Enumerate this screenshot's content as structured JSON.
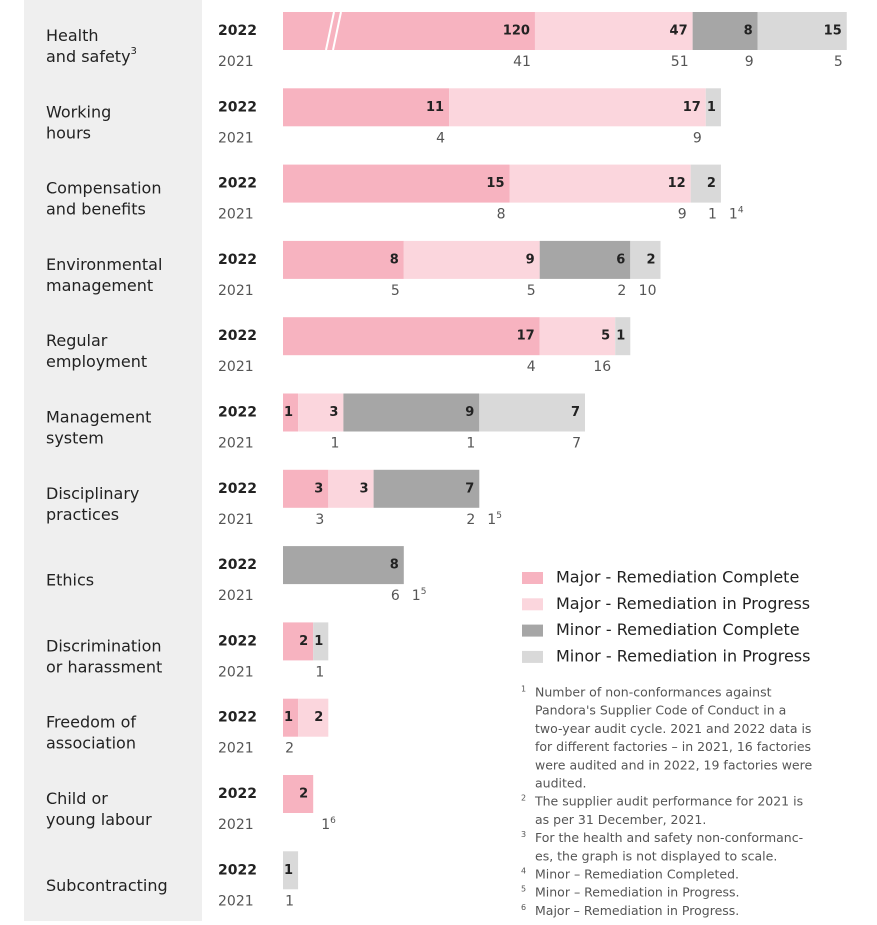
{
  "chart_data": {
    "type": "bar",
    "year_labels": [
      "2022",
      "2021"
    ],
    "series": [
      {
        "name": "Major - Remediation Complete",
        "color": "#f7b3c0"
      },
      {
        "name": "Major - Remediation in Progress",
        "color": "#fbd6dd"
      },
      {
        "name": "Minor - Remediation Complete",
        "color": "#a6a6a6"
      },
      {
        "name": "Minor - Remediation in Progress",
        "color": "#d9d9d9"
      }
    ],
    "rows": [
      {
        "label": [
          "Health",
          "and safety"
        ],
        "note": "3",
        "broken": true,
        "values": [
          120,
          47,
          8,
          15
        ],
        "values_2021": [
          41,
          51,
          9,
          5
        ],
        "notes_2021": [
          null,
          null,
          null,
          null
        ]
      },
      {
        "label": [
          "Working",
          "hours"
        ],
        "values": [
          11,
          17,
          null,
          1
        ],
        "values_2021": [
          4,
          9,
          null,
          null
        ],
        "notes_2021": [
          null,
          null,
          null,
          null
        ]
      },
      {
        "label": [
          "Compensation",
          "and benefits"
        ],
        "values": [
          15,
          12,
          null,
          2
        ],
        "values_2021": [
          8,
          9,
          1,
          1
        ],
        "notes_2021": [
          null,
          null,
          "4",
          null
        ]
      },
      {
        "label": [
          "Environmental",
          "management"
        ],
        "values": [
          8,
          9,
          6,
          2
        ],
        "values_2021": [
          5,
          5,
          2,
          10
        ],
        "notes_2021": [
          null,
          null,
          null,
          null
        ]
      },
      {
        "label": [
          "Regular",
          "employment"
        ],
        "values": [
          17,
          5,
          null,
          1
        ],
        "values_2021": [
          4,
          16,
          null,
          null
        ],
        "notes_2021": [
          null,
          null,
          null,
          null
        ]
      },
      {
        "label": [
          "Management",
          "system"
        ],
        "values": [
          1,
          3,
          9,
          7
        ],
        "values_2021": [
          null,
          1,
          1,
          7
        ],
        "notes_2021": [
          null,
          null,
          null,
          null
        ]
      },
      {
        "label": [
          "Disciplinary",
          "practices"
        ],
        "values": [
          3,
          3,
          7,
          null
        ],
        "values_2021": [
          3,
          null,
          2,
          1
        ],
        "notes_2021": [
          null,
          null,
          null,
          "5"
        ]
      },
      {
        "label": [
          "Ethics"
        ],
        "values": [
          null,
          null,
          8,
          null
        ],
        "values_2021": [
          null,
          null,
          6,
          1
        ],
        "notes_2021": [
          null,
          null,
          null,
          "5"
        ]
      },
      {
        "label": [
          "Discrimination",
          "or harassment"
        ],
        "values": [
          2,
          null,
          null,
          1
        ],
        "values_2021": [
          null,
          null,
          null,
          1
        ],
        "notes_2021": [
          null,
          null,
          null,
          null
        ]
      },
      {
        "label": [
          "Freedom of",
          "association"
        ],
        "values": [
          1,
          2,
          null,
          null
        ],
        "values_2021": [
          2,
          null,
          null,
          null
        ],
        "notes_2021": [
          null,
          null,
          null,
          null
        ]
      },
      {
        "label": [
          "Child or",
          "young labour"
        ],
        "values": [
          2,
          null,
          null,
          null
        ],
        "values_2021": [
          null,
          1,
          null,
          null
        ],
        "notes_2021": [
          null,
          "6",
          null,
          null
        ]
      },
      {
        "label": [
          "Subcontracting"
        ],
        "values": [
          null,
          null,
          null,
          1
        ],
        "values_2021": [
          null,
          null,
          null,
          1
        ],
        "notes_2021": [
          null,
          null,
          null,
          null
        ]
      }
    ],
    "footnotes": [
      {
        "mark": "1",
        "lines": [
          "Number of non-conformances against",
          "Pandora's Supplier Code of Conduct in a",
          "two-year audit cycle. 2021 and 2022 data is",
          "for different factories – in 2021, 16 factories",
          "were audited and in 2022, 19 factories were",
          "audited."
        ]
      },
      {
        "mark": "2",
        "lines": [
          "The supplier audit performance for 2021 is",
          "as per 31 December, 2021."
        ]
      },
      {
        "mark": "3",
        "lines": [
          "For the health and safety non-conformanc-",
          "es, the graph is not displayed to scale."
        ]
      },
      {
        "mark": "4",
        "lines": [
          "Minor – Remediation Completed."
        ]
      },
      {
        "mark": "5",
        "lines": [
          "Minor – Remediation in Progress."
        ]
      },
      {
        "mark": "6",
        "lines": [
          "Major – Remediation in Progress."
        ]
      }
    ]
  }
}
